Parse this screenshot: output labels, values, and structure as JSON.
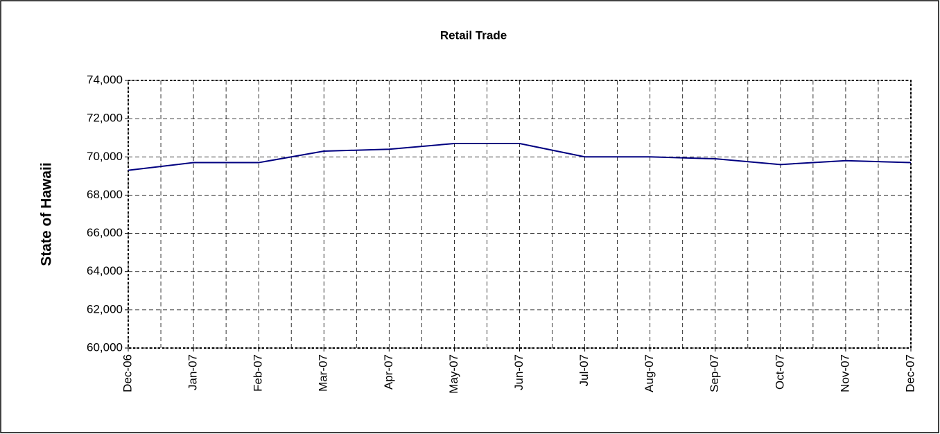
{
  "chart_data": {
    "type": "line",
    "title": "Retail Trade",
    "y_label": "State of Hawaii",
    "categories": [
      "Dec-06",
      "Jan-07",
      "Feb-07",
      "Mar-07",
      "Apr-07",
      "May-07",
      "Jun-07",
      "Jul-07",
      "Aug-07",
      "Sep-07",
      "Oct-07",
      "Nov-07",
      "Dec-07"
    ],
    "series": [
      {
        "name": "State of Hawaii",
        "color": "#000080",
        "values": [
          69300,
          69700,
          69700,
          70300,
          70400,
          70700,
          70700,
          70000,
          70000,
          69900,
          69600,
          69800,
          69700
        ]
      }
    ],
    "ylim": [
      60000,
      74000
    ],
    "yticks": [
      {
        "value": 60000,
        "label": "60,000"
      },
      {
        "value": 62000,
        "label": "62,000"
      },
      {
        "value": 64000,
        "label": "64,000"
      },
      {
        "value": 66000,
        "label": "66,000"
      },
      {
        "value": 68000,
        "label": "68,000"
      },
      {
        "value": 70000,
        "label": "70,000"
      },
      {
        "value": 72000,
        "label": "72,000"
      },
      {
        "value": 74000,
        "label": "74,000"
      }
    ],
    "grid": true
  }
}
